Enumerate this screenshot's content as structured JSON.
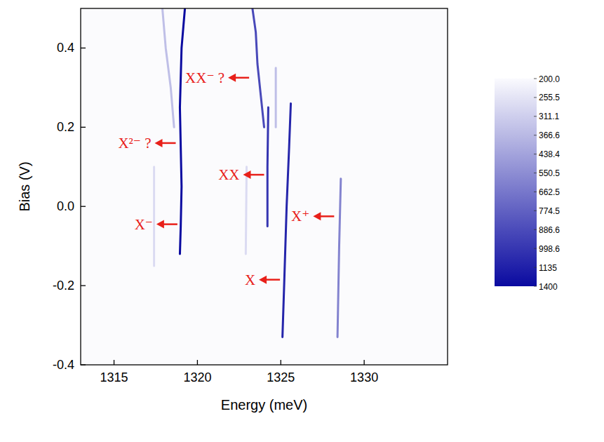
{
  "chart_data": {
    "type": "line",
    "x_label": "Energy (meV)",
    "y_label": "Bias (V)",
    "xlim": [
      1313,
      1335
    ],
    "xticks": [
      1315,
      1320,
      1325,
      1330
    ],
    "ylim": [
      -0.4,
      0.5
    ],
    "yticks": [
      -0.4,
      -0.2,
      {
        "value": 0,
        "label": "0.0"
      },
      0.2,
      0.4
    ],
    "grid": false,
    "colorbar": {
      "ticks": [
        {
          "value": 200,
          "label": "200.0"
        },
        255.5,
        311.1,
        366.6,
        438.4,
        550.5,
        662.5,
        774.5,
        886.6,
        998.6,
        1135,
        1400
      ]
    },
    "series": [
      {
        "x": [
          1318.95,
          1319.0,
          1319.05,
          1319.0,
          1318.95,
          1319.05,
          1319.25
        ],
        "values": [
          -0.12,
          -0.05,
          0.05,
          0.15,
          0.25,
          0.4,
          0.5
        ],
        "intensity": 1400
      },
      {
        "x": [
          1318.6,
          1318.4,
          1318.1,
          1317.9
        ],
        "values": [
          0.2,
          0.3,
          0.4,
          0.5
        ],
        "intensity": 350
      },
      {
        "x": [
          1317.4,
          1317.4
        ],
        "values": [
          -0.15,
          0.1
        ],
        "intensity": 280
      },
      {
        "x": [
          1324.0,
          1323.8,
          1323.6,
          1323.5,
          1323.3
        ],
        "values": [
          0.2,
          0.28,
          0.36,
          0.44,
          0.5
        ],
        "intensity": 900
      },
      {
        "x": [
          1324.2,
          1324.2,
          1324.25
        ],
        "values": [
          -0.05,
          0.1,
          0.25
        ],
        "intensity": 1000
      },
      {
        "x": [
          1325.1,
          1325.2,
          1325.35,
          1325.5,
          1325.6
        ],
        "values": [
          -0.33,
          -0.2,
          0.0,
          0.15,
          0.26
        ],
        "intensity": 1100
      },
      {
        "x": [
          1328.4,
          1328.5,
          1328.6
        ],
        "values": [
          -0.33,
          -0.1,
          0.07
        ],
        "intensity": 600
      },
      {
        "x": [
          1322.9,
          1322.95
        ],
        "values": [
          -0.12,
          0.1
        ],
        "intensity": 280
      },
      {
        "x": [
          1324.7,
          1324.7
        ],
        "values": [
          0.2,
          0.35
        ],
        "intensity": 350
      }
    ],
    "annotations": [
      {
        "text": "XX⁻ ?",
        "x": 1323.1,
        "y": 0.325
      },
      {
        "text": "X²⁻ ?",
        "x": 1318.7,
        "y": 0.16
      },
      {
        "text": "XX",
        "x": 1324.0,
        "y": 0.08
      },
      {
        "text": "X⁻",
        "x": 1318.8,
        "y": -0.045
      },
      {
        "text": "X⁺",
        "x": 1328.2,
        "y": -0.025
      },
      {
        "text": "X",
        "x": 1324.95,
        "y": -0.185
      }
    ]
  }
}
